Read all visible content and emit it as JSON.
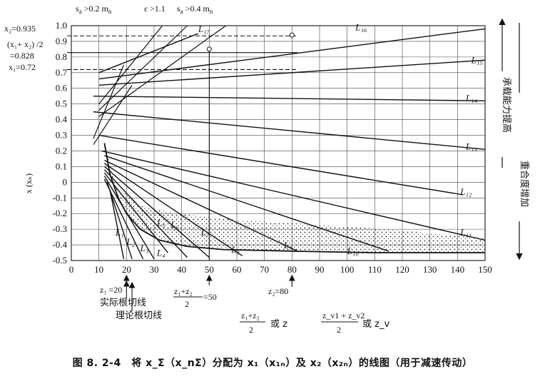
{
  "chart_data": {
    "type": "line",
    "xlabel_parts": [
      "z₁+z₂",
      "2",
      "或 z",
      "z_v1 + z_v2",
      "2",
      "或 z_v"
    ],
    "ylabel": "x (xₙ)",
    "xlim": [
      0,
      150
    ],
    "ylim": [
      -0.5,
      1.0
    ],
    "x_ticks": [
      "0",
      "10",
      "20",
      "30",
      "40",
      "50",
      "60",
      "70",
      "80",
      "90",
      "100",
      "110",
      "120",
      "130",
      "140",
      "150"
    ],
    "y_ticks": [
      "1.0",
      "0.9",
      "0.8",
      "0.7",
      "0.6",
      "0.5",
      "0.4",
      "0.3",
      "0.2",
      "0.1",
      "0",
      "-0.1",
      "-0.2",
      "-0.3",
      "-0.4",
      "-0.5"
    ],
    "hlines": [
      0.935,
      0.828,
      0.72
    ],
    "vline_x": 50,
    "lines_L": [
      {
        "name": "L₁₇",
        "points": [
          [
            10,
            0.7
          ],
          [
            46,
            0.95
          ]
        ],
        "label_pos": [
          46,
          0.96
        ]
      },
      {
        "name": "L₁₆",
        "points": [
          [
            10,
            0.66
          ],
          [
            150,
            0.98
          ]
        ],
        "label_pos": [
          103,
          0.97
        ]
      },
      {
        "name": "L₁₅",
        "points": [
          [
            10,
            0.62
          ],
          [
            150,
            0.78
          ]
        ],
        "label_pos": [
          145,
          0.76
        ]
      },
      {
        "name": "L₁₄",
        "points": [
          [
            8,
            0.55
          ],
          [
            150,
            0.52
          ]
        ],
        "label_pos": [
          143,
          0.52
        ]
      },
      {
        "name": "L₁₃",
        "points": [
          [
            8,
            0.45
          ],
          [
            150,
            0.21
          ]
        ],
        "label_pos": [
          143,
          0.21
        ]
      },
      {
        "name": "L₁₂",
        "points": [
          [
            10,
            0.3
          ],
          [
            142,
            -0.08
          ]
        ],
        "label_pos": [
          141,
          -0.08
        ]
      },
      {
        "name": "L₁₁",
        "points": [
          [
            11,
            0.2
          ],
          [
            150,
            -0.37
          ]
        ],
        "label_pos": [
          141,
          -0.34
        ]
      },
      {
        "name": "L₁₀",
        "points": [
          [
            12,
            0.17
          ],
          [
            115,
            -0.44
          ]
        ],
        "label_pos": [
          100,
          -0.46
        ]
      },
      {
        "name": "L₉",
        "points": [
          [
            12,
            0.14
          ],
          [
            82,
            -0.44
          ]
        ],
        "label_pos": [
          77,
          -0.42
        ]
      },
      {
        "name": "L₈",
        "points": [
          [
            12,
            0.12
          ],
          [
            62,
            -0.47
          ]
        ],
        "label_pos": [
          58,
          -0.45
        ]
      },
      {
        "name": "L₇",
        "points": [
          [
            12,
            0.1
          ],
          [
            50,
            -0.48
          ]
        ],
        "label_pos": [
          47,
          -0.34
        ]
      },
      {
        "name": "L₆",
        "points": [
          [
            12,
            0.08
          ],
          [
            42,
            -0.48
          ]
        ],
        "label_pos": [
          36,
          -0.29
        ]
      },
      {
        "name": "L₅",
        "points": [
          [
            12,
            0.06
          ],
          [
            35,
            -0.45
          ]
        ],
        "label_pos": [
          31,
          -0.28
        ]
      },
      {
        "name": "L₄",
        "points": [
          [
            12,
            0.04
          ],
          [
            30,
            -0.49
          ]
        ],
        "label_pos": [
          31,
          -0.47
        ]
      },
      {
        "name": "L₃",
        "points": [
          [
            12,
            0.02
          ],
          [
            26,
            -0.49
          ]
        ],
        "label_pos": [
          25,
          -0.44
        ]
      },
      {
        "name": "L₂",
        "points": [
          [
            13,
            0.0
          ],
          [
            22,
            -0.49
          ]
        ],
        "label_pos": [
          20,
          -0.4
        ]
      },
      {
        "name": "L₁",
        "points": [
          [
            14,
            -0.05
          ],
          [
            19,
            -0.49
          ]
        ],
        "label_pos": [
          16,
          -0.34
        ]
      }
    ],
    "boundary_lines": [
      {
        "name": "s_a>0.2 m_n",
        "points": [
          [
            10,
            0.5
          ],
          [
            33,
            1.0
          ]
        ]
      },
      {
        "name": "ε>1.1",
        "points": [
          [
            10,
            0.46
          ],
          [
            42,
            1.0
          ]
        ]
      },
      {
        "name": "s_a>0.4 m_n",
        "points": [
          [
            10,
            0.42
          ],
          [
            56,
            1.0
          ]
        ]
      },
      {
        "name": "root-cut-actual",
        "points": [
          [
            8,
            0.28
          ],
          [
            19,
            0.75
          ]
        ]
      },
      {
        "name": "root-cut-theory",
        "points": [
          [
            8,
            0.24
          ],
          [
            22,
            0.62
          ]
        ]
      }
    ],
    "markers": [
      [
        50,
        0.85
      ],
      [
        80,
        0.94
      ]
    ],
    "lower_boundary": [
      [
        12,
        0.25
      ],
      [
        14,
        0.05
      ],
      [
        17,
        -0.1
      ],
      [
        20,
        -0.2
      ],
      [
        25,
        -0.3
      ],
      [
        32,
        -0.37
      ],
      [
        42,
        -0.41
      ],
      [
        55,
        -0.43
      ],
      [
        80,
        -0.44
      ],
      [
        110,
        -0.45
      ],
      [
        150,
        -0.45
      ]
    ]
  },
  "annotations": {
    "top_left_1": "s",
    "top_left_1_sub": "a",
    "top_left_1_rest": " >0.2 m",
    "top_left_1_n": "n",
    "top_mid": "ε >1.1",
    "top_right_1": "s",
    "top_right_1_sub": "a",
    "top_right_1_rest": " >0.4 m",
    "top_right_1_n": "n",
    "x2_value": "x₂=0.935",
    "avg_label": "(x₁+ x₂) /2",
    "avg_value": "=0.828",
    "x1_value": "x₁=0.72",
    "z1_value": "z₁ =20",
    "actual_root": "实际根切线",
    "theory_root": "理论根切线",
    "z_avg_num": "z₁+z₂",
    "z_avg_den": "2",
    "z_avg_val": "=50",
    "z2_value": "z₂=80",
    "right_arrow_up": "承载能力提高",
    "right_arrow_down": "重合度增加"
  },
  "caption": "图 8. 2-4　将 x_Σ（x_nΣ）分配为 x₁（x₁ₙ）及 x₂（x₂ₙ）的线图（用于减速传动）"
}
